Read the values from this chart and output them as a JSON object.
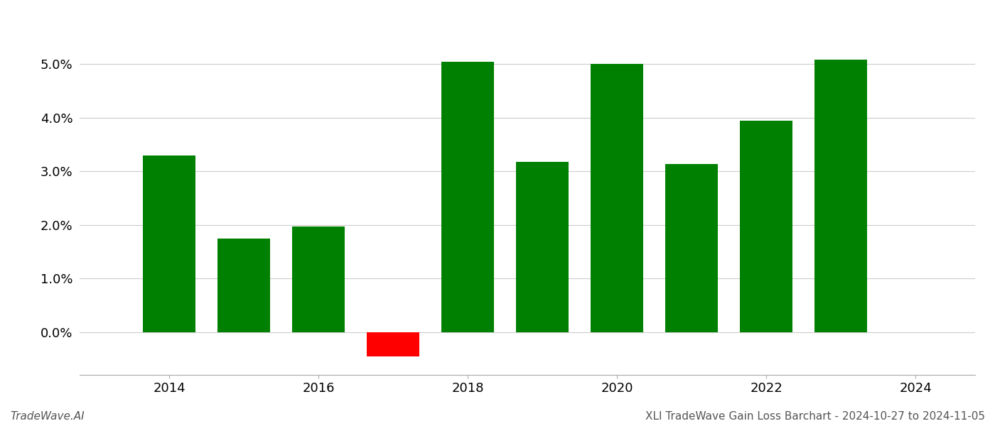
{
  "years": [
    2014,
    2015,
    2016,
    2017,
    2018,
    2019,
    2020,
    2021,
    2022,
    2023
  ],
  "values": [
    0.033,
    0.0175,
    0.0197,
    -0.0045,
    0.0505,
    0.0318,
    0.05,
    0.0313,
    0.0394,
    0.0508
  ],
  "colors": [
    "#008000",
    "#008000",
    "#008000",
    "#ff0000",
    "#008000",
    "#008000",
    "#008000",
    "#008000",
    "#008000",
    "#008000"
  ],
  "bar_width": 0.7,
  "xlim": [
    2012.8,
    2024.8
  ],
  "ylim": [
    -0.008,
    0.058
  ],
  "yticks": [
    0.0,
    0.01,
    0.02,
    0.03,
    0.04,
    0.05
  ],
  "xticks": [
    2014,
    2016,
    2018,
    2020,
    2022,
    2024
  ],
  "xtick_labels": [
    "2014",
    "2016",
    "2018",
    "2020",
    "2022",
    "2024"
  ],
  "footer_left": "TradeWave.AI",
  "footer_right": "XLI TradeWave Gain Loss Barchart - 2024-10-27 to 2024-11-05",
  "background_color": "#ffffff",
  "grid_color": "#cccccc",
  "footer_fontsize": 11,
  "tick_fontsize": 13
}
